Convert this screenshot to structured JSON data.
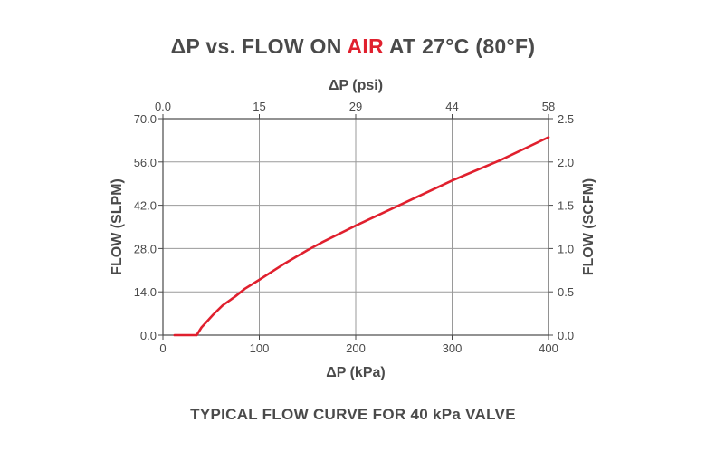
{
  "title": {
    "before": "ΔP vs. FLOW ON ",
    "accent": "AIR",
    "after": " AT 27°C (80°F)"
  },
  "caption": "TYPICAL FLOW CURVE FOR 40 kPa VALVE",
  "colors": {
    "text": "#4a4a4a",
    "accent": "#e0202e",
    "curve": "#e0202e",
    "grid": "#9a9a9a",
    "axis": "#4a4a4a"
  },
  "chart_data": {
    "type": "line",
    "grid": true,
    "xlabel": "ΔP (kPa)",
    "xlabel_top": "ΔP (psi)",
    "ylabel": "FLOW (SLPM)",
    "ylabel_right": "FLOW (SCFM)",
    "xlim": [
      0,
      400
    ],
    "ylim": [
      0,
      70
    ],
    "xticks": [
      0,
      100,
      200,
      300,
      400
    ],
    "xtick_labels": [
      "0",
      "100",
      "200",
      "300",
      "400"
    ],
    "xticks_top_labels": [
      "0.0",
      "15",
      "29",
      "44",
      "58"
    ],
    "yticks": [
      0,
      14,
      28,
      42,
      56,
      70
    ],
    "ytick_labels": [
      "0.0",
      "14.0",
      "28.0",
      "42.0",
      "56.0",
      "70.0"
    ],
    "yticks_right_labels": [
      "0.0",
      "0.5",
      "1.0",
      "1.5",
      "2.0",
      "2.5"
    ],
    "series": [
      {
        "x": [
          12,
          35,
          40,
          45,
          52,
          62,
          75,
          85,
          100,
          125,
          150,
          165,
          200,
          250,
          300,
          350,
          400
        ],
        "y": [
          0,
          0,
          2.5,
          4.2,
          6.6,
          9.6,
          12.5,
          15,
          17.9,
          22.9,
          27.5,
          30,
          35.4,
          42.7,
          50,
          56.6,
          64
        ]
      }
    ]
  }
}
